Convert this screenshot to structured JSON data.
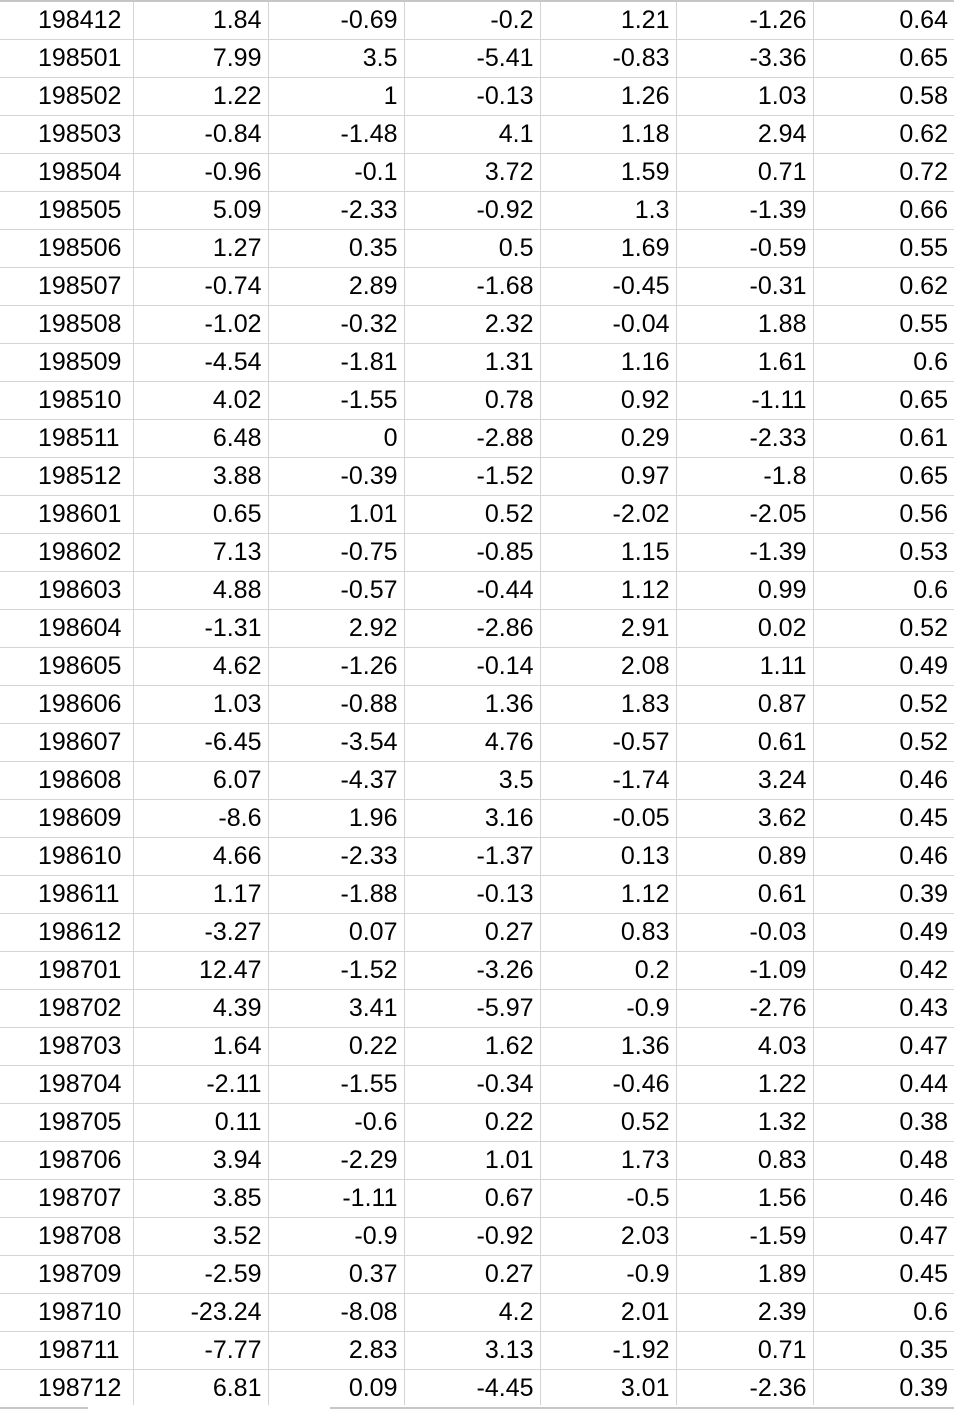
{
  "sheet": {
    "rows": [
      [
        "198412",
        "1.84",
        "-0.69",
        "-0.2",
        "1.21",
        "-1.26",
        "0.64"
      ],
      [
        "198501",
        "7.99",
        "3.5",
        "-5.41",
        "-0.83",
        "-3.36",
        "0.65"
      ],
      [
        "198502",
        "1.22",
        "1",
        "-0.13",
        "1.26",
        "1.03",
        "0.58"
      ],
      [
        "198503",
        "-0.84",
        "-1.48",
        "4.1",
        "1.18",
        "2.94",
        "0.62"
      ],
      [
        "198504",
        "-0.96",
        "-0.1",
        "3.72",
        "1.59",
        "0.71",
        "0.72"
      ],
      [
        "198505",
        "5.09",
        "-2.33",
        "-0.92",
        "1.3",
        "-1.39",
        "0.66"
      ],
      [
        "198506",
        "1.27",
        "0.35",
        "0.5",
        "1.69",
        "-0.59",
        "0.55"
      ],
      [
        "198507",
        "-0.74",
        "2.89",
        "-1.68",
        "-0.45",
        "-0.31",
        "0.62"
      ],
      [
        "198508",
        "-1.02",
        "-0.32",
        "2.32",
        "-0.04",
        "1.88",
        "0.55"
      ],
      [
        "198509",
        "-4.54",
        "-1.81",
        "1.31",
        "1.16",
        "1.61",
        "0.6"
      ],
      [
        "198510",
        "4.02",
        "-1.55",
        "0.78",
        "0.92",
        "-1.11",
        "0.65"
      ],
      [
        "198511",
        "6.48",
        "0",
        "-2.88",
        "0.29",
        "-2.33",
        "0.61"
      ],
      [
        "198512",
        "3.88",
        "-0.39",
        "-1.52",
        "0.97",
        "-1.8",
        "0.65"
      ],
      [
        "198601",
        "0.65",
        "1.01",
        "0.52",
        "-2.02",
        "-2.05",
        "0.56"
      ],
      [
        "198602",
        "7.13",
        "-0.75",
        "-0.85",
        "1.15",
        "-1.39",
        "0.53"
      ],
      [
        "198603",
        "4.88",
        "-0.57",
        "-0.44",
        "1.12",
        "0.99",
        "0.6"
      ],
      [
        "198604",
        "-1.31",
        "2.92",
        "-2.86",
        "2.91",
        "0.02",
        "0.52"
      ],
      [
        "198605",
        "4.62",
        "-1.26",
        "-0.14",
        "2.08",
        "1.11",
        "0.49"
      ],
      [
        "198606",
        "1.03",
        "-0.88",
        "1.36",
        "1.83",
        "0.87",
        "0.52"
      ],
      [
        "198607",
        "-6.45",
        "-3.54",
        "4.76",
        "-0.57",
        "0.61",
        "0.52"
      ],
      [
        "198608",
        "6.07",
        "-4.37",
        "3.5",
        "-1.74",
        "3.24",
        "0.46"
      ],
      [
        "198609",
        "-8.6",
        "1.96",
        "3.16",
        "-0.05",
        "3.62",
        "0.45"
      ],
      [
        "198610",
        "4.66",
        "-2.33",
        "-1.37",
        "0.13",
        "0.89",
        "0.46"
      ],
      [
        "198611",
        "1.17",
        "-1.88",
        "-0.13",
        "1.12",
        "0.61",
        "0.39"
      ],
      [
        "198612",
        "-3.27",
        "0.07",
        "0.27",
        "0.83",
        "-0.03",
        "0.49"
      ],
      [
        "198701",
        "12.47",
        "-1.52",
        "-3.26",
        "0.2",
        "-1.09",
        "0.42"
      ],
      [
        "198702",
        "4.39",
        "3.41",
        "-5.97",
        "-0.9",
        "-2.76",
        "0.43"
      ],
      [
        "198703",
        "1.64",
        "0.22",
        "1.62",
        "1.36",
        "4.03",
        "0.47"
      ],
      [
        "198704",
        "-2.11",
        "-1.55",
        "-0.34",
        "-0.46",
        "1.22",
        "0.44"
      ],
      [
        "198705",
        "0.11",
        "-0.6",
        "0.22",
        "0.52",
        "1.32",
        "0.38"
      ],
      [
        "198706",
        "3.94",
        "-2.29",
        "1.01",
        "1.73",
        "0.83",
        "0.48"
      ],
      [
        "198707",
        "3.85",
        "-1.11",
        "0.67",
        "-0.5",
        "1.56",
        "0.46"
      ],
      [
        "198708",
        "3.52",
        "-0.9",
        "-0.92",
        "2.03",
        "-1.59",
        "0.47"
      ],
      [
        "198709",
        "-2.59",
        "0.37",
        "0.27",
        "-0.9",
        "1.89",
        "0.45"
      ],
      [
        "198710",
        "-23.24",
        "-8.08",
        "4.2",
        "2.01",
        "2.39",
        "0.6"
      ],
      [
        "198711",
        "-7.77",
        "2.83",
        "3.13",
        "-1.92",
        "0.71",
        "0.35"
      ],
      [
        "198712",
        "6.81",
        "0.09",
        "-4.45",
        "3.01",
        "-2.36",
        "0.39"
      ]
    ]
  }
}
